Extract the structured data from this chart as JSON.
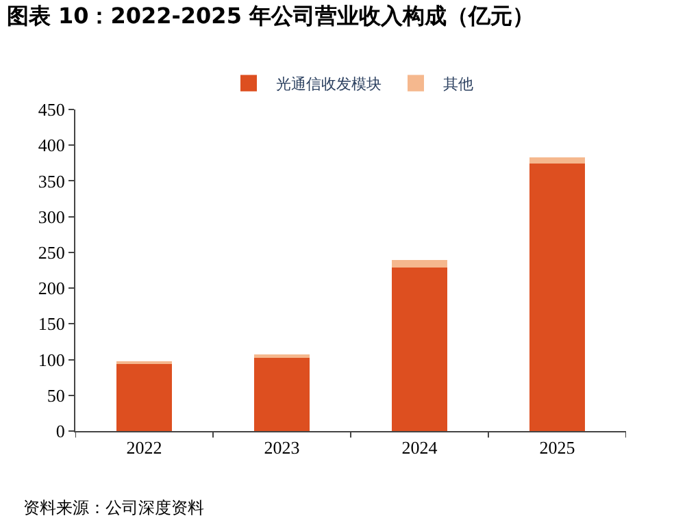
{
  "chart_data": {
    "type": "bar",
    "stacked": true,
    "title": "图表 10：2022-2025 年公司营业收入构成（亿元）",
    "categories": [
      "2022",
      "2023",
      "2024",
      "2025"
    ],
    "series": [
      {
        "name": "光通信收发模块",
        "color": "#dd4f20",
        "values": [
          94,
          102,
          229,
          374
        ]
      },
      {
        "name": "其他",
        "color": "#f5b88e",
        "values": [
          3,
          5,
          10,
          9
        ]
      }
    ],
    "ylim": [
      0,
      450
    ],
    "yticks": [
      0,
      50,
      100,
      150,
      200,
      250,
      300,
      350,
      400,
      450
    ],
    "legend": "top",
    "annotations": [
      "资料来源：公司深度资料"
    ]
  }
}
